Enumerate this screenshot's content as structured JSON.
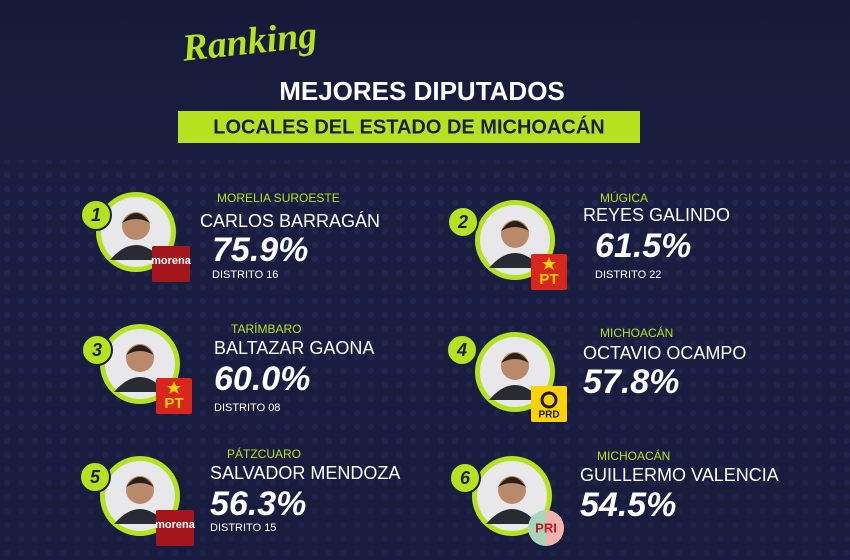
{
  "header": {
    "script": "Ranking",
    "title": "MEJORES DIPUTADOS",
    "subtitle": "LOCALES DEL ESTADO DE MICHOACÁN"
  },
  "entries": [
    {
      "rank": 1,
      "municipality": "MORELIA SUROESTE",
      "name": "CARLOS BARRAGÁN",
      "percent": "75.9%",
      "district": "DISTRITO 16",
      "party": "morena"
    },
    {
      "rank": 2,
      "municipality": "MÚGICA",
      "name": "REYES GALINDO",
      "percent": "61.5%",
      "district": "DISTRITO 22",
      "party": "PT"
    },
    {
      "rank": 3,
      "municipality": "TARÍMBARO",
      "name": "BALTAZAR GAONA",
      "percent": "60.0%",
      "district": "DISTRITO 08",
      "party": "PT"
    },
    {
      "rank": 4,
      "municipality": "MICHOACÁN",
      "name": "OCTAVIO OCAMPO",
      "percent": "57.8%",
      "party": "PRD"
    },
    {
      "rank": 5,
      "municipality": "PÁTZCUARO",
      "name": "SALVADOR MENDOZA",
      "percent": "56.3%",
      "district": "DISTRITO 15",
      "party": "morena"
    },
    {
      "rank": 6,
      "municipality": "MICHOACÁN",
      "name": "GUILLERMO VALENCIA",
      "percent": "54.5%",
      "party": "PRI"
    }
  ]
}
